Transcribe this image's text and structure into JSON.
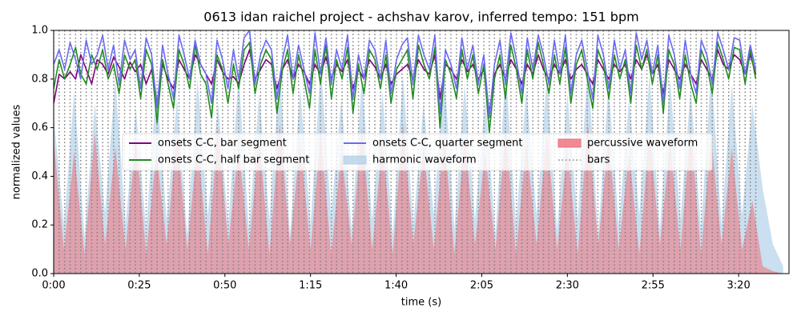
{
  "chart_data": {
    "type": "line",
    "title": "0613 idan raichel project - achshav karov, inferred tempo: 151 bpm",
    "xlabel": "time (s)",
    "ylabel": "normalized values",
    "xlim": [
      0,
      214.7
    ],
    "ylim": [
      0,
      1
    ],
    "xticks": [
      {
        "value": 0,
        "label": "0:00"
      },
      {
        "value": 25,
        "label": "0:25"
      },
      {
        "value": 50,
        "label": "0:50"
      },
      {
        "value": 75,
        "label": "1:15"
      },
      {
        "value": 100,
        "label": "1:40"
      },
      {
        "value": 125,
        "label": "2:05"
      },
      {
        "value": 150,
        "label": "2:30"
      },
      {
        "value": 175,
        "label": "2:55"
      },
      {
        "value": 200,
        "label": "3:20"
      }
    ],
    "yticks": [
      {
        "value": 0,
        "label": "0.0"
      },
      {
        "value": 0.2,
        "label": "0.2"
      },
      {
        "value": 0.4,
        "label": "0.4"
      },
      {
        "value": 0.6,
        "label": "0.6"
      },
      {
        "value": 0.8,
        "label": "0.8"
      },
      {
        "value": 1,
        "label": "1.0"
      }
    ],
    "legend": "center",
    "x": [
      0,
      1.6,
      3.2,
      4.8,
      6.4,
      7.9,
      9.5,
      11.1,
      12.7,
      14.3,
      15.9,
      17.5,
      19.1,
      20.7,
      22.3,
      23.8,
      25.4,
      27.0,
      28.6,
      30.2,
      31.8,
      33.4,
      35.0,
      36.6,
      38.1,
      39.7,
      41.3,
      42.9,
      44.5,
      46.1,
      47.7,
      49.3,
      50.9,
      52.5,
      54.0,
      55.6,
      57.2,
      58.8,
      60.4,
      62.0,
      63.6,
      65.2,
      66.8,
      68.3,
      69.9,
      71.5,
      73.1,
      74.7,
      76.3,
      77.9,
      79.5,
      81.1,
      82.6,
      84.2,
      85.8,
      87.4,
      89.0,
      90.6,
      92.2,
      93.8,
      95.4,
      97.0,
      98.5,
      100.1,
      101.7,
      103.3,
      104.9,
      106.5,
      108.1,
      109.7,
      111.3,
      112.8,
      114.4,
      116.0,
      117.6,
      119.2,
      120.8,
      122.4,
      124.0,
      125.6,
      127.2,
      128.7,
      130.3,
      131.9,
      133.5,
      135.1,
      136.7,
      138.3,
      139.9,
      141.5,
      143.0,
      144.6,
      146.2,
      147.8,
      149.4,
      151.0,
      152.6,
      154.2,
      155.8,
      157.4,
      158.9,
      160.5,
      162.1,
      163.7,
      165.3,
      166.9,
      168.5,
      170.1,
      171.7,
      173.2,
      174.8,
      176.4,
      178.0,
      179.6,
      181.2,
      182.8,
      184.4,
      186.0,
      187.6,
      189.1,
      190.7,
      192.3,
      193.9,
      195.5,
      197.1,
      198.7,
      200.3,
      201.9,
      203.4,
      205.0
    ],
    "series": [
      {
        "name": "onsets C-C, bar segment",
        "color": "#800080",
        "values": [
          0.7,
          0.82,
          0.8,
          0.83,
          0.8,
          0.9,
          0.84,
          0.78,
          0.88,
          0.86,
          0.82,
          0.89,
          0.85,
          0.8,
          0.87,
          0.83,
          0.86,
          0.78,
          0.84,
          0.7,
          0.86,
          0.8,
          0.76,
          0.88,
          0.84,
          0.8,
          0.9,
          0.86,
          0.82,
          0.78,
          0.88,
          0.83,
          0.8,
          0.81,
          0.78,
          0.86,
          0.92,
          0.8,
          0.84,
          0.88,
          0.86,
          0.76,
          0.84,
          0.88,
          0.8,
          0.86,
          0.83,
          0.78,
          0.86,
          0.82,
          0.89,
          0.8,
          0.86,
          0.83,
          0.88,
          0.76,
          0.84,
          0.8,
          0.88,
          0.85,
          0.8,
          0.86,
          0.78,
          0.82,
          0.84,
          0.86,
          0.8,
          0.88,
          0.84,
          0.82,
          0.9,
          0.72,
          0.86,
          0.84,
          0.8,
          0.88,
          0.83,
          0.86,
          0.8,
          0.84,
          0.66,
          0.82,
          0.86,
          0.8,
          0.88,
          0.84,
          0.78,
          0.86,
          0.82,
          0.9,
          0.84,
          0.8,
          0.86,
          0.82,
          0.88,
          0.8,
          0.84,
          0.86,
          0.82,
          0.78,
          0.88,
          0.84,
          0.8,
          0.86,
          0.83,
          0.86,
          0.8,
          0.88,
          0.84,
          0.9,
          0.82,
          0.86,
          0.74,
          0.88,
          0.84,
          0.8,
          0.86,
          0.82,
          0.78,
          0.88,
          0.84,
          0.8,
          0.92,
          0.86,
          0.84,
          0.9,
          0.88,
          0.82,
          0.9,
          0.82
        ]
      },
      {
        "name": "onsets C-C, half bar segment",
        "color": "#228b22",
        "values": [
          0.76,
          0.88,
          0.8,
          0.86,
          0.93,
          0.82,
          0.78,
          0.9,
          0.84,
          0.92,
          0.8,
          0.86,
          0.74,
          0.9,
          0.84,
          0.88,
          0.72,
          0.92,
          0.86,
          0.62,
          0.88,
          0.78,
          0.68,
          0.92,
          0.86,
          0.76,
          0.94,
          0.82,
          0.78,
          0.64,
          0.9,
          0.84,
          0.7,
          0.86,
          0.76,
          0.92,
          0.95,
          0.74,
          0.86,
          0.92,
          0.88,
          0.66,
          0.84,
          0.92,
          0.74,
          0.9,
          0.8,
          0.68,
          0.92,
          0.78,
          0.94,
          0.72,
          0.88,
          0.8,
          0.93,
          0.66,
          0.86,
          0.74,
          0.92,
          0.88,
          0.76,
          0.9,
          0.7,
          0.84,
          0.88,
          0.92,
          0.72,
          0.94,
          0.86,
          0.8,
          0.93,
          0.6,
          0.88,
          0.82,
          0.72,
          0.92,
          0.8,
          0.9,
          0.74,
          0.86,
          0.58,
          0.8,
          0.9,
          0.72,
          0.94,
          0.84,
          0.7,
          0.92,
          0.8,
          0.95,
          0.86,
          0.74,
          0.9,
          0.78,
          0.93,
          0.7,
          0.86,
          0.92,
          0.8,
          0.68,
          0.92,
          0.86,
          0.72,
          0.9,
          0.8,
          0.88,
          0.7,
          0.94,
          0.84,
          0.92,
          0.78,
          0.9,
          0.66,
          0.92,
          0.86,
          0.72,
          0.9,
          0.78,
          0.7,
          0.92,
          0.86,
          0.74,
          0.95,
          0.88,
          0.8,
          0.93,
          0.92,
          0.78,
          0.92,
          0.8
        ]
      },
      {
        "name": "onsets C-C, quarter segment",
        "color": "#6a6af5",
        "values": [
          0.86,
          0.92,
          0.84,
          0.95,
          0.88,
          0.8,
          0.96,
          0.86,
          0.9,
          0.98,
          0.84,
          0.94,
          0.78,
          0.96,
          0.88,
          0.92,
          0.76,
          0.97,
          0.9,
          0.68,
          0.94,
          0.82,
          0.72,
          0.98,
          0.9,
          0.8,
          0.96,
          0.86,
          0.82,
          0.7,
          0.96,
          0.88,
          0.76,
          0.92,
          0.8,
          0.97,
          1.0,
          0.78,
          0.9,
          0.96,
          0.92,
          0.72,
          0.88,
          0.98,
          0.8,
          0.94,
          0.84,
          0.74,
          0.99,
          0.82,
          0.97,
          0.78,
          0.92,
          0.84,
          0.98,
          0.72,
          0.9,
          0.8,
          0.96,
          0.92,
          0.8,
          0.96,
          0.74,
          0.88,
          0.94,
          0.97,
          0.78,
          0.98,
          0.9,
          0.84,
          0.98,
          0.66,
          0.92,
          0.86,
          0.76,
          0.97,
          0.84,
          0.94,
          0.78,
          0.9,
          0.64,
          0.86,
          0.96,
          0.78,
          0.99,
          0.88,
          0.74,
          0.97,
          0.84,
          0.98,
          0.9,
          0.78,
          0.96,
          0.82,
          0.98,
          0.74,
          0.9,
          0.96,
          0.84,
          0.72,
          0.98,
          0.9,
          0.76,
          0.96,
          0.84,
          0.92,
          0.74,
          0.99,
          0.88,
          0.96,
          0.82,
          0.94,
          0.7,
          0.98,
          0.9,
          0.76,
          0.96,
          0.82,
          0.74,
          0.96,
          0.9,
          0.78,
          0.99,
          0.92,
          0.84,
          0.97,
          0.96,
          0.82,
          0.94,
          0.84
        ]
      }
    ],
    "areas": [
      {
        "name": "harmonic waveform",
        "color": "#b4d2e8",
        "x": [
          0,
          3,
          6,
          9,
          12,
          15,
          18,
          21,
          24,
          27,
          30,
          33,
          36,
          39,
          42,
          45,
          48,
          51,
          54,
          57,
          60,
          63,
          66,
          69,
          72,
          75,
          78,
          81,
          84,
          87,
          90,
          93,
          96,
          99,
          102,
          105,
          108,
          111,
          114,
          117,
          120,
          123,
          126,
          129,
          132,
          135,
          138,
          141,
          144,
          147,
          150,
          153,
          156,
          159,
          162,
          165,
          168,
          171,
          174,
          177,
          180,
          183,
          186,
          189,
          192,
          195,
          198,
          201,
          204,
          207,
          210,
          213
        ],
        "values": [
          0.65,
          0.2,
          0.75,
          0.15,
          0.7,
          0.25,
          0.8,
          0.2,
          0.68,
          0.18,
          0.78,
          0.22,
          0.72,
          0.16,
          0.8,
          0.24,
          0.7,
          0.2,
          0.82,
          0.18,
          0.74,
          0.22,
          0.84,
          0.16,
          0.76,
          0.2,
          0.86,
          0.24,
          0.72,
          0.18,
          0.8,
          0.22,
          0.75,
          0.16,
          0.82,
          0.2,
          0.7,
          0.24,
          0.85,
          0.18,
          0.78,
          0.22,
          0.72,
          0.16,
          0.84,
          0.2,
          0.76,
          0.24,
          0.8,
          0.18,
          0.74,
          0.22,
          0.86,
          0.16,
          0.78,
          0.2,
          0.72,
          0.24,
          0.82,
          0.18,
          0.8,
          0.22,
          0.76,
          0.18,
          0.84,
          0.2,
          0.78,
          0.24,
          0.7,
          0.35,
          0.12,
          0.03
        ]
      },
      {
        "name": "percussive waveform",
        "color": "#ee6e78",
        "x": [
          0,
          3,
          6,
          9,
          12,
          15,
          18,
          21,
          24,
          27,
          30,
          33,
          36,
          39,
          42,
          45,
          48,
          51,
          54,
          57,
          60,
          63,
          66,
          69,
          72,
          75,
          78,
          81,
          84,
          87,
          90,
          93,
          96,
          99,
          102,
          105,
          108,
          111,
          114,
          117,
          120,
          123,
          126,
          129,
          132,
          135,
          138,
          141,
          144,
          147,
          150,
          153,
          156,
          159,
          162,
          165,
          168,
          171,
          174,
          177,
          180,
          183,
          186,
          189,
          192,
          195,
          198,
          201,
          204,
          207,
          210,
          213
        ],
        "values": [
          0.55,
          0.1,
          0.5,
          0.08,
          0.58,
          0.12,
          0.52,
          0.1,
          0.56,
          0.08,
          0.5,
          0.12,
          0.58,
          0.1,
          0.54,
          0.08,
          0.6,
          0.12,
          0.52,
          0.1,
          0.56,
          0.08,
          0.62,
          0.12,
          0.54,
          0.1,
          0.58,
          0.08,
          0.5,
          0.12,
          0.6,
          0.1,
          0.54,
          0.08,
          0.62,
          0.12,
          0.52,
          0.1,
          0.58,
          0.08,
          0.56,
          0.12,
          0.5,
          0.1,
          0.6,
          0.08,
          0.54,
          0.12,
          0.58,
          0.1,
          0.52,
          0.08,
          0.62,
          0.12,
          0.56,
          0.1,
          0.5,
          0.08,
          0.58,
          0.12,
          0.54,
          0.1,
          0.6,
          0.08,
          0.56,
          0.12,
          0.52,
          0.1,
          0.3,
          0.03,
          0.01,
          0.0
        ]
      }
    ],
    "bars": {
      "name": "bars",
      "color": "#808080"
    }
  }
}
